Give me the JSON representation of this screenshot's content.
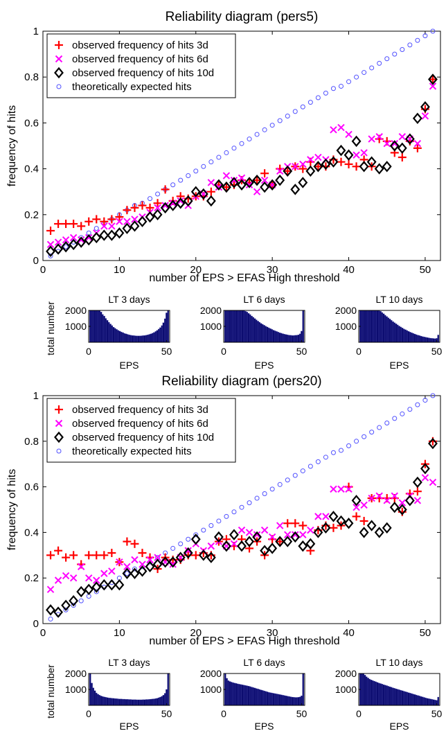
{
  "chart_data": [
    {
      "type": "scatter",
      "title": "Reliability diagram (pers5)",
      "xlabel": "number of EPS > EFAS High threshold",
      "ylabel": "frequency of hits",
      "xlim": [
        0,
        52
      ],
      "ylim": [
        0,
        1
      ],
      "xticks": [
        0,
        10,
        20,
        30,
        40,
        50
      ],
      "yticks": [
        0,
        0.2,
        0.4,
        0.6,
        0.8,
        1
      ],
      "ytick_labels": [
        "0",
        "0.2",
        "0.4",
        "0.6",
        "0.8",
        "1"
      ],
      "grid": false,
      "legend_position": "top-left",
      "x": [
        1,
        2,
        3,
        4,
        5,
        6,
        7,
        8,
        9,
        10,
        11,
        12,
        13,
        14,
        15,
        16,
        17,
        18,
        19,
        20,
        21,
        22,
        23,
        24,
        25,
        26,
        27,
        28,
        29,
        30,
        31,
        32,
        33,
        34,
        35,
        36,
        37,
        38,
        39,
        40,
        41,
        42,
        43,
        44,
        45,
        46,
        47,
        48,
        49,
        50,
        51
      ],
      "series": [
        {
          "name": "observed frequency of hits 3d",
          "marker": "plus",
          "color": "#ff0000",
          "values": [
            0.13,
            0.16,
            0.16,
            0.16,
            0.15,
            0.17,
            0.18,
            0.17,
            0.18,
            0.19,
            0.22,
            0.23,
            0.24,
            0.23,
            0.25,
            0.31,
            0.26,
            0.28,
            0.27,
            0.28,
            0.28,
            0.3,
            0.33,
            0.32,
            0.33,
            0.35,
            0.34,
            0.35,
            0.38,
            0.33,
            0.4,
            0.39,
            0.41,
            0.4,
            0.43,
            0.41,
            0.41,
            0.44,
            0.43,
            0.42,
            0.41,
            0.44,
            0.41,
            0.53,
            0.52,
            0.47,
            0.45,
            0.52,
            0.49,
            0.66,
            0.79
          ]
        },
        {
          "name": "observed frequency of hits 6d",
          "marker": "x",
          "color": "#ff00ff",
          "values": [
            0.07,
            0.08,
            0.09,
            0.1,
            0.09,
            0.1,
            0.12,
            0.15,
            0.15,
            0.17,
            0.17,
            0.18,
            0.19,
            0.21,
            0.23,
            0.24,
            0.25,
            0.26,
            0.24,
            0.28,
            0.29,
            0.34,
            0.32,
            0.37,
            0.35,
            0.36,
            0.33,
            0.3,
            0.35,
            0.33,
            0.39,
            0.41,
            0.41,
            0.42,
            0.44,
            0.45,
            0.44,
            0.57,
            0.58,
            0.55,
            0.46,
            0.47,
            0.53,
            0.54,
            0.51,
            0.51,
            0.54,
            0.53,
            0.51,
            0.63,
            0.76
          ]
        },
        {
          "name": "observed frequency of hits 10d",
          "marker": "diamond",
          "color": "#000000",
          "values": [
            0.04,
            0.05,
            0.06,
            0.07,
            0.08,
            0.09,
            0.1,
            0.11,
            0.11,
            0.12,
            0.14,
            0.15,
            0.17,
            0.19,
            0.2,
            0.23,
            0.24,
            0.25,
            0.26,
            0.3,
            0.29,
            0.26,
            0.33,
            0.32,
            0.34,
            0.33,
            0.34,
            0.35,
            0.32,
            0.33,
            0.35,
            0.39,
            0.31,
            0.34,
            0.39,
            0.41,
            0.42,
            0.43,
            0.48,
            0.46,
            0.52,
            0.41,
            0.43,
            0.4,
            0.41,
            0.5,
            0.49,
            0.53,
            0.62,
            0.67,
            0.79
          ]
        },
        {
          "name": "theoretically expected hits",
          "marker": "circle",
          "color": "#5050ff",
          "values": [
            0.02,
            0.04,
            0.06,
            0.08,
            0.1,
            0.12,
            0.14,
            0.16,
            0.18,
            0.2,
            0.22,
            0.24,
            0.25,
            0.27,
            0.29,
            0.31,
            0.33,
            0.35,
            0.37,
            0.39,
            0.41,
            0.43,
            0.45,
            0.47,
            0.49,
            0.51,
            0.53,
            0.55,
            0.57,
            0.59,
            0.61,
            0.63,
            0.65,
            0.67,
            0.69,
            0.71,
            0.73,
            0.75,
            0.76,
            0.78,
            0.8,
            0.82,
            0.84,
            0.86,
            0.88,
            0.9,
            0.92,
            0.94,
            0.96,
            0.98,
            1.0
          ]
        }
      ],
      "histograms": [
        {
          "title": "LT 3 days",
          "xlabel": "EPS",
          "ylabel": "total number",
          "xlim": [
            0,
            52
          ],
          "ylim": [
            0,
            2000
          ],
          "xticks": [
            0,
            50
          ],
          "yticks": [
            1000,
            2000
          ],
          "bar_color": "#0a0a6e",
          "values": [
            2000,
            2000,
            2000,
            2000,
            2000,
            2000,
            2000,
            1900,
            1750,
            1650,
            1500,
            1380,
            1260,
            1150,
            1050,
            950,
            880,
            810,
            750,
            700,
            650,
            610,
            560,
            530,
            500,
            470,
            450,
            430,
            420,
            410,
            400,
            400,
            400,
            410,
            420,
            430,
            450,
            470,
            500,
            530,
            570,
            620,
            680,
            750,
            830,
            920,
            1050,
            1230,
            1480,
            1850,
            2000
          ]
        },
        {
          "title": "LT 6 days",
          "xlabel": "EPS",
          "ylabel": "",
          "xlim": [
            0,
            52
          ],
          "ylim": [
            0,
            2000
          ],
          "xticks": [
            0,
            50
          ],
          "yticks": [
            1000,
            2000
          ],
          "bar_color": "#0a0a6e",
          "values": [
            2000,
            2000,
            2000,
            2000,
            2000,
            2000,
            2000,
            2000,
            2000,
            2000,
            2000,
            2000,
            2000,
            1950,
            1900,
            1820,
            1740,
            1650,
            1570,
            1490,
            1410,
            1330,
            1260,
            1190,
            1130,
            1070,
            1010,
            960,
            910,
            860,
            810,
            760,
            720,
            680,
            640,
            600,
            570,
            540,
            510,
            490,
            470,
            450,
            440,
            430,
            430,
            440,
            450,
            470,
            530,
            700,
            2000
          ]
        },
        {
          "title": "LT 10 days",
          "xlabel": "EPS",
          "ylabel": "",
          "xlim": [
            0,
            52
          ],
          "ylim": [
            0,
            2000
          ],
          "xticks": [
            0,
            50
          ],
          "yticks": [
            1000,
            2000
          ],
          "bar_color": "#0a0a6e",
          "values": [
            2000,
            2000,
            2000,
            2000,
            2000,
            2000,
            2000,
            2000,
            2000,
            2000,
            2000,
            2000,
            2000,
            1950,
            1870,
            1790,
            1700,
            1620,
            1540,
            1460,
            1380,
            1300,
            1230,
            1160,
            1090,
            1020,
            960,
            900,
            840,
            790,
            740,
            690,
            640,
            600,
            560,
            520,
            480,
            450,
            420,
            390,
            360,
            340,
            320,
            300,
            280,
            260,
            250,
            240,
            230,
            250,
            460
          ]
        }
      ]
    },
    {
      "type": "scatter",
      "title": "Reliability diagram (pers20)",
      "xlabel": "number of EPS > EFAS High threshold",
      "ylabel": "frequency of hits",
      "xlim": [
        0,
        52
      ],
      "ylim": [
        0,
        1
      ],
      "xticks": [
        0,
        10,
        20,
        30,
        40,
        50
      ],
      "yticks": [
        0,
        0.2,
        0.4,
        0.6,
        0.8,
        1
      ],
      "ytick_labels": [
        "0",
        "0.2",
        "0.4",
        "0.6",
        "0.8",
        "1"
      ],
      "grid": false,
      "legend_position": "top-left",
      "x": [
        1,
        2,
        3,
        4,
        5,
        6,
        7,
        8,
        9,
        10,
        11,
        12,
        13,
        14,
        15,
        16,
        17,
        18,
        19,
        20,
        21,
        22,
        23,
        24,
        25,
        26,
        27,
        28,
        29,
        30,
        31,
        32,
        33,
        34,
        35,
        36,
        37,
        38,
        39,
        40,
        41,
        42,
        43,
        44,
        45,
        46,
        47,
        48,
        49,
        50,
        51
      ],
      "series": [
        {
          "name": "observed frequency of hits 3d",
          "marker": "plus",
          "color": "#ff0000",
          "values": [
            0.3,
            0.32,
            0.29,
            0.3,
            0.26,
            0.3,
            0.3,
            0.3,
            0.31,
            0.27,
            0.36,
            0.35,
            0.31,
            0.29,
            0.24,
            0.29,
            0.28,
            0.28,
            0.3,
            0.3,
            0.31,
            0.3,
            0.36,
            0.37,
            0.34,
            0.37,
            0.33,
            0.36,
            0.3,
            0.37,
            0.36,
            0.44,
            0.44,
            0.43,
            0.32,
            0.41,
            0.43,
            0.42,
            0.43,
            0.6,
            0.47,
            0.45,
            0.55,
            0.55,
            0.55,
            0.55,
            0.49,
            0.57,
            0.58,
            0.7,
            0.8
          ]
        },
        {
          "name": "observed frequency of hits 6d",
          "marker": "x",
          "color": "#ff00ff",
          "values": [
            0.15,
            0.19,
            0.21,
            0.2,
            0.25,
            0.2,
            0.19,
            0.22,
            0.23,
            0.27,
            0.25,
            0.28,
            0.26,
            0.28,
            0.29,
            0.27,
            0.26,
            0.29,
            0.32,
            0.35,
            0.32,
            0.34,
            0.36,
            0.34,
            0.35,
            0.41,
            0.4,
            0.39,
            0.41,
            0.38,
            0.43,
            0.39,
            0.39,
            0.39,
            0.41,
            0.47,
            0.47,
            0.59,
            0.59,
            0.59,
            0.51,
            0.52,
            0.55,
            0.56,
            0.54,
            0.56,
            0.53,
            0.56,
            0.54,
            0.64,
            0.62
          ]
        },
        {
          "name": "observed frequency of hits 10d",
          "marker": "diamond",
          "color": "#000000",
          "values": [
            0.06,
            0.05,
            0.08,
            0.1,
            0.14,
            0.15,
            0.16,
            0.17,
            0.17,
            0.17,
            0.22,
            0.22,
            0.23,
            0.25,
            0.26,
            0.27,
            0.27,
            0.29,
            0.31,
            0.37,
            0.3,
            0.29,
            0.38,
            0.34,
            0.39,
            0.34,
            0.36,
            0.38,
            0.32,
            0.33,
            0.36,
            0.36,
            0.38,
            0.34,
            0.35,
            0.4,
            0.42,
            0.47,
            0.45,
            0.44,
            0.54,
            0.4,
            0.43,
            0.4,
            0.42,
            0.51,
            0.5,
            0.54,
            0.62,
            0.68,
            0.79
          ]
        },
        {
          "name": "theoretically expected hits",
          "marker": "circle",
          "color": "#5050ff",
          "values": [
            0.02,
            0.04,
            0.06,
            0.08,
            0.1,
            0.12,
            0.14,
            0.16,
            0.18,
            0.2,
            0.22,
            0.24,
            0.25,
            0.27,
            0.29,
            0.31,
            0.33,
            0.35,
            0.37,
            0.39,
            0.41,
            0.43,
            0.45,
            0.47,
            0.49,
            0.51,
            0.53,
            0.55,
            0.57,
            0.59,
            0.61,
            0.63,
            0.65,
            0.67,
            0.69,
            0.71,
            0.73,
            0.75,
            0.76,
            0.78,
            0.8,
            0.82,
            0.84,
            0.86,
            0.88,
            0.9,
            0.92,
            0.94,
            0.96,
            0.98,
            1.0
          ]
        }
      ],
      "histograms": [
        {
          "title": "LT 3 days",
          "xlabel": "EPS",
          "ylabel": "total number",
          "xlim": [
            0,
            52
          ],
          "ylim": [
            0,
            2000
          ],
          "xticks": [
            0,
            50
          ],
          "yticks": [
            1000,
            2000
          ],
          "bar_color": "#0a0a6e",
          "values": [
            2000,
            1400,
            1100,
            920,
            780,
            700,
            640,
            590,
            560,
            530,
            510,
            490,
            470,
            460,
            450,
            440,
            430,
            420,
            410,
            400,
            400,
            390,
            390,
            380,
            380,
            370,
            370,
            360,
            360,
            360,
            350,
            350,
            350,
            350,
            360,
            360,
            370,
            370,
            380,
            390,
            400,
            410,
            430,
            450,
            480,
            520,
            570,
            640,
            760,
            1000,
            2000
          ]
        },
        {
          "title": "LT 6 days",
          "xlabel": "EPS",
          "ylabel": "",
          "xlim": [
            0,
            52
          ],
          "ylim": [
            0,
            2000
          ],
          "xticks": [
            0,
            50
          ],
          "yticks": [
            1000,
            2000
          ],
          "bar_color": "#0a0a6e",
          "values": [
            2000,
            1700,
            1550,
            1500,
            1460,
            1430,
            1400,
            1380,
            1350,
            1330,
            1310,
            1290,
            1270,
            1250,
            1230,
            1210,
            1180,
            1150,
            1120,
            1090,
            1060,
            1030,
            1000,
            970,
            940,
            910,
            880,
            850,
            820,
            800,
            780,
            760,
            740,
            720,
            700,
            680,
            660,
            640,
            620,
            600,
            580,
            560,
            540,
            520,
            510,
            500,
            500,
            510,
            530,
            600,
            2000
          ]
        },
        {
          "title": "LT 10 days",
          "xlabel": "EPS",
          "ylabel": "",
          "xlim": [
            0,
            52
          ],
          "ylim": [
            0,
            2000
          ],
          "xticks": [
            0,
            50
          ],
          "yticks": [
            1000,
            2000
          ],
          "bar_color": "#0a0a6e",
          "values": [
            2000,
            2000,
            2000,
            1900,
            1800,
            1720,
            1650,
            1600,
            1560,
            1520,
            1480,
            1440,
            1400,
            1370,
            1340,
            1300,
            1270,
            1240,
            1200,
            1170,
            1140,
            1100,
            1070,
            1040,
            1010,
            980,
            950,
            920,
            890,
            860,
            830,
            800,
            770,
            740,
            710,
            680,
            650,
            620,
            590,
            560,
            530,
            500,
            470,
            440,
            420,
            400,
            380,
            360,
            340,
            320,
            520
          ]
        }
      ]
    }
  ]
}
